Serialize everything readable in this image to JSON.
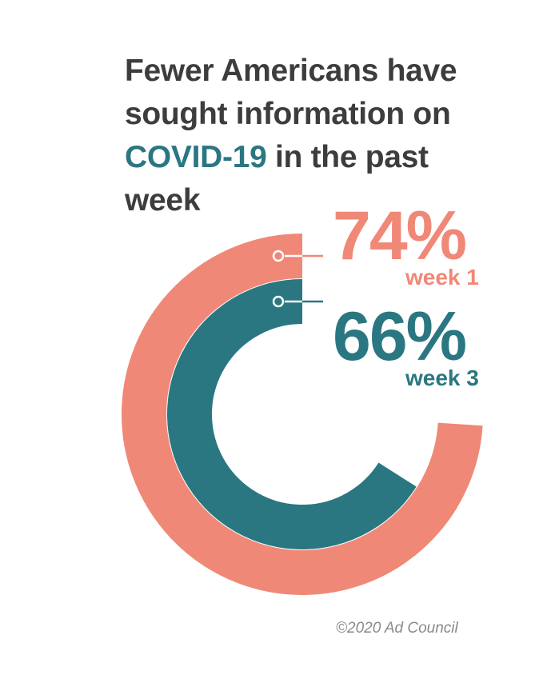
{
  "title": {
    "line1": "Fewer Americans have",
    "line2": "sought information on",
    "highlight": "COVID-19",
    "line3_rest": " in the past",
    "line4": "week"
  },
  "colors": {
    "week1": "#f08877",
    "week3": "#2a7782",
    "title": "#3d3d3d",
    "credit": "#8a8a8a"
  },
  "chart_data": {
    "type": "radial-bar",
    "title": "Fewer Americans have sought information on COVID-19 in the past week",
    "series": [
      {
        "name": "week 1",
        "label": "74%",
        "value": 74
      },
      {
        "name": "week 3",
        "label": "66%",
        "value": 66
      }
    ],
    "max": 100
  },
  "credit": "©2020 Ad Council"
}
